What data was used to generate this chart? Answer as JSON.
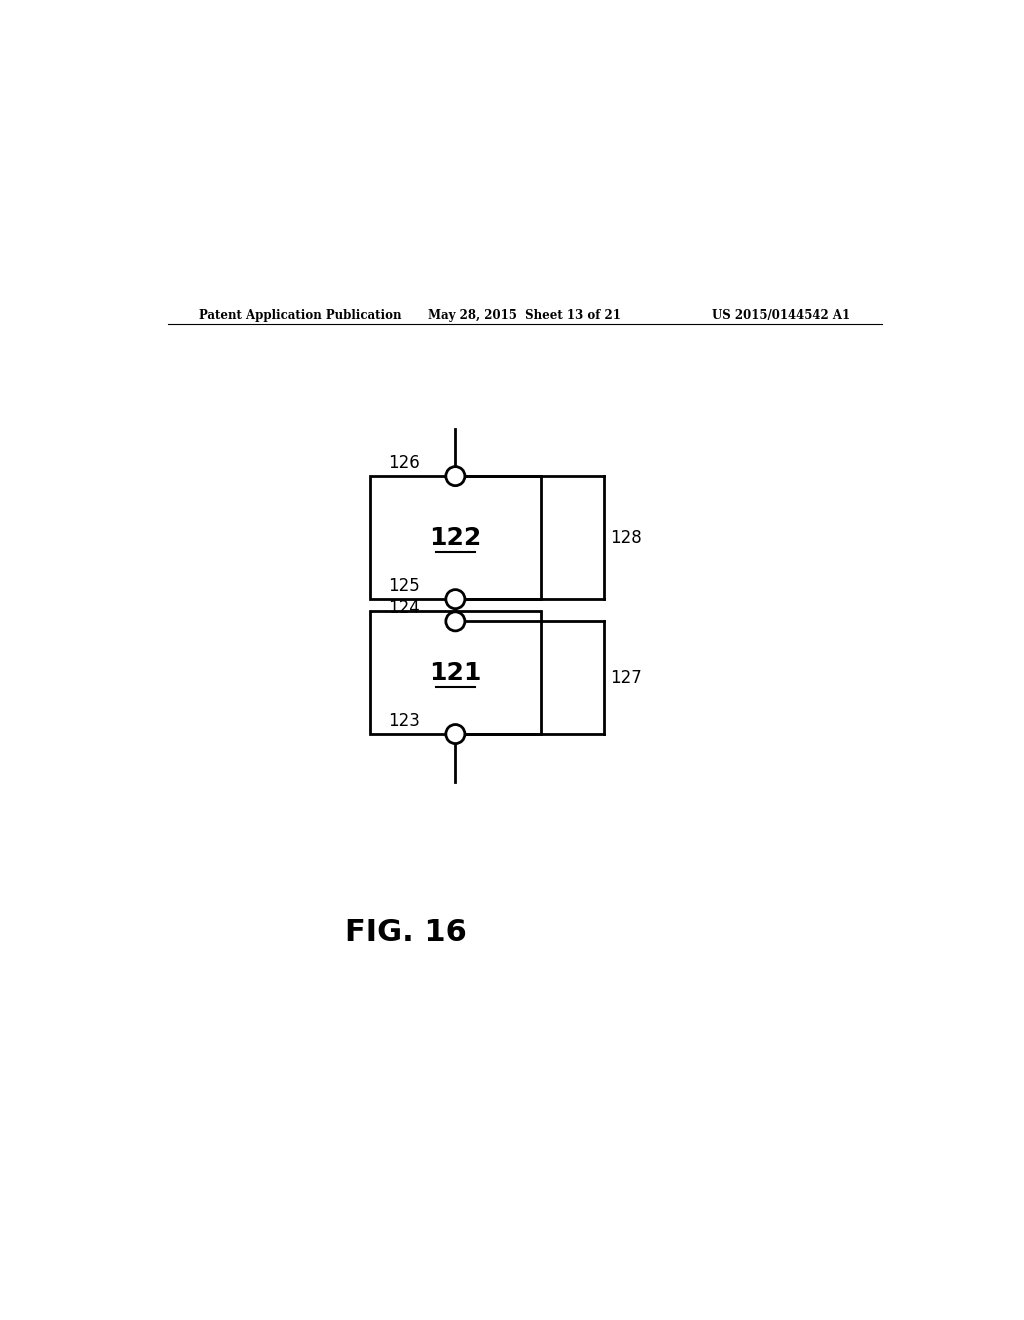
{
  "bg_color": "#ffffff",
  "header_left": "Patent Application Publication",
  "header_mid": "May 28, 2015  Sheet 13 of 21",
  "header_right": "US 2015/0144542 A1",
  "fig_label": "FIG. 16",
  "box1_label": "122",
  "box2_label": "121",
  "label_126": "126",
  "label_125": "125",
  "label_124": "124",
  "label_123": "123",
  "label_128": "128",
  "label_127": "127",
  "lw": 2.0
}
